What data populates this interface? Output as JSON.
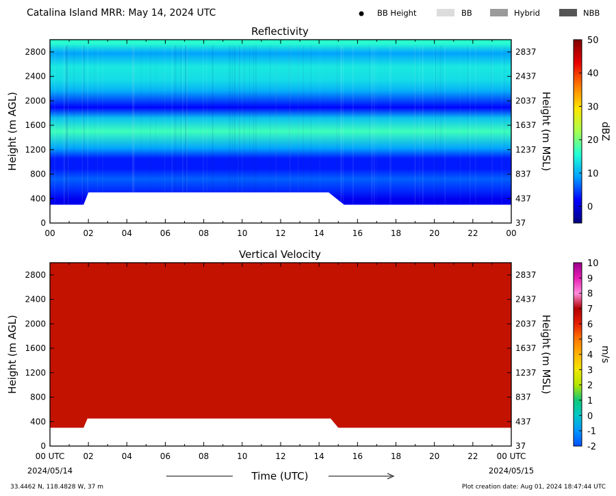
{
  "header": {
    "title": "Catalina Island MRR:  May 14, 2024 UTC",
    "legend": [
      {
        "label": "BB Height",
        "marker": "dot",
        "color": "#000000"
      },
      {
        "label": "BB",
        "marker": "swatch",
        "color": "#dcdcdc"
      },
      {
        "label": "Hybrid",
        "marker": "swatch",
        "color": "#9a9a9a"
      },
      {
        "label": "NBB",
        "marker": "swatch",
        "color": "#555555"
      }
    ]
  },
  "footer": {
    "location": "33.4462 N, 118.4828 W, 37 m",
    "creation": "Plot creation date: Aug 01, 2024 18:47:44 UTC",
    "xaxis_title": "Time (UTC)",
    "start_date": "2024/05/14",
    "end_date": "2024/05/15"
  },
  "chart_data": [
    {
      "type": "heatmap",
      "title": "Reflectivity",
      "ylabel": "Height (m AGL)",
      "ylabel_right": "Height (m MSL)",
      "xlim": [
        0,
        24
      ],
      "ylim": [
        0,
        3000
      ],
      "x_ticks": [
        "00",
        "02",
        "04",
        "06",
        "08",
        "10",
        "12",
        "14",
        "16",
        "18",
        "20",
        "22",
        "00"
      ],
      "y_ticks": [
        0,
        400,
        800,
        1200,
        1600,
        2000,
        2400,
        2800
      ],
      "y_ticks_right": [
        37,
        437,
        837,
        1237,
        1637,
        2037,
        2437,
        2837
      ],
      "colorbar": {
        "label": "dBZ",
        "range": [
          -5,
          50
        ],
        "ticks": [
          0,
          10,
          20,
          30,
          40,
          50
        ],
        "stops": [
          "#00007f",
          "#0000ff",
          "#00a0ff",
          "#22ffd6",
          "#a8ff4f",
          "#ffe600",
          "#ff7a00",
          "#e80000",
          "#7f0000"
        ]
      },
      "data_top_m": 3000,
      "echo_base_m": [
        {
          "x": 0,
          "y": 300
        },
        {
          "x": 1.75,
          "y": 300
        },
        {
          "x": 2.0,
          "y": 500
        },
        {
          "x": 14.5,
          "y": 500
        },
        {
          "x": 15.3,
          "y": 300
        },
        {
          "x": 24,
          "y": 300
        }
      ],
      "layers": [
        {
          "y": 2950,
          "dbz": 16
        },
        {
          "y": 2800,
          "dbz": 9
        },
        {
          "y": 2600,
          "dbz": 14
        },
        {
          "y": 2400,
          "dbz": 13
        },
        {
          "y": 2250,
          "dbz": 10
        },
        {
          "y": 2000,
          "dbz": 2
        },
        {
          "y": 1850,
          "dbz": 11
        },
        {
          "y": 1650,
          "dbz": 17
        },
        {
          "y": 1400,
          "dbz": 9
        },
        {
          "y": 1250,
          "dbz": 3
        },
        {
          "y": 1100,
          "dbz": 3
        },
        {
          "y": 950,
          "dbz": 6
        },
        {
          "y": 800,
          "dbz": 4
        },
        {
          "y": 650,
          "dbz": 1
        },
        {
          "y": 500,
          "dbz": 1
        },
        {
          "y": 350,
          "dbz": 2
        },
        {
          "y": 300,
          "dbz": 2
        }
      ]
    },
    {
      "type": "heatmap",
      "title": "Vertical Velocity",
      "ylabel": "Height (m AGL)",
      "ylabel_right": "Height (m MSL)",
      "xlim": [
        0,
        24
      ],
      "ylim": [
        0,
        3000
      ],
      "x_ticks": [
        "00 UTC",
        "02",
        "04",
        "06",
        "08",
        "10",
        "12",
        "14",
        "16",
        "18",
        "20",
        "22",
        "00 UTC"
      ],
      "y_ticks": [
        0,
        400,
        800,
        1200,
        1600,
        2000,
        2400,
        2800
      ],
      "y_ticks_right": [
        37,
        437,
        837,
        1237,
        1637,
        2037,
        2437,
        2837
      ],
      "colorbar": {
        "label": "m/s",
        "range": [
          -2,
          10
        ],
        "ticks": [
          -2,
          -1,
          0,
          1,
          2,
          3,
          4,
          5,
          6,
          7,
          8,
          9,
          10
        ],
        "stops": [
          "#0050ff",
          "#0096ff",
          "#00c8c8",
          "#10c878",
          "#b4e600",
          "#f0e600",
          "#ffb400",
          "#ff7800",
          "#e61e00",
          "#b40000",
          "#ff8cdc",
          "#e61eb4",
          "#9b008c"
        ]
      },
      "data_top_m": 3000,
      "fill_value": 6,
      "fill_color": "#c41200",
      "echo_base_m": [
        {
          "x": 0,
          "y": 300
        },
        {
          "x": 1.75,
          "y": 300
        },
        {
          "x": 1.95,
          "y": 450
        },
        {
          "x": 14.6,
          "y": 450
        },
        {
          "x": 15.0,
          "y": 300
        },
        {
          "x": 24,
          "y": 300
        }
      ]
    }
  ]
}
